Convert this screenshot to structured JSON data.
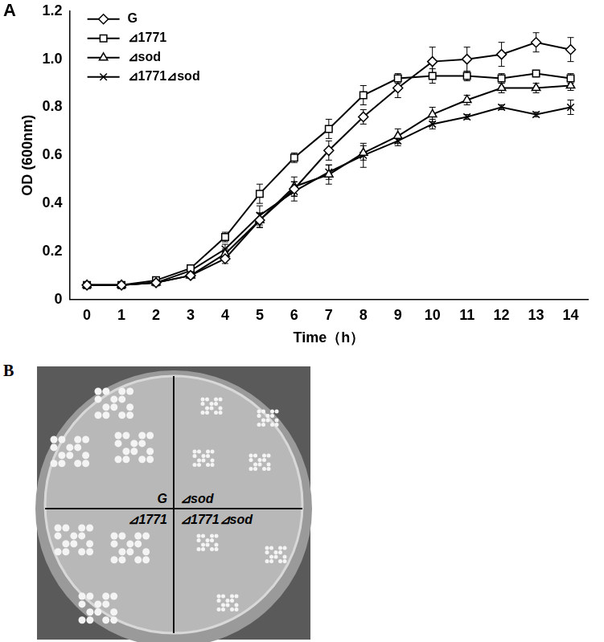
{
  "chart_data": {
    "type": "line",
    "annotations": [
      "A"
    ],
    "x_label": "Time（h）",
    "y_label": "OD (600nm)",
    "categories": [
      "0",
      "1",
      "2",
      "3",
      "4",
      "5",
      "6",
      "7",
      "8",
      "9",
      "10",
      "11",
      "12",
      "13",
      "14"
    ],
    "series": [
      {
        "name": "G",
        "color": "#000000",
        "marker": "diamond",
        "values": [
          0.06,
          0.06,
          0.07,
          0.1,
          0.17,
          0.33,
          0.46,
          0.62,
          0.76,
          0.88,
          0.99,
          1.0,
          1.02,
          1.07,
          1.04
        ],
        "errors": [
          0.005,
          0.005,
          0.01,
          0.01,
          0.02,
          0.03,
          0.03,
          0.04,
          0.03,
          0.04,
          0.06,
          0.05,
          0.05,
          0.04,
          0.05
        ]
      },
      {
        "name": "⊿1771",
        "color": "#000000",
        "marker": "square",
        "values": [
          0.06,
          0.06,
          0.08,
          0.13,
          0.26,
          0.44,
          0.59,
          0.71,
          0.85,
          0.92,
          0.93,
          0.93,
          0.92,
          0.94,
          0.92
        ],
        "errors": [
          0.005,
          0.005,
          0.01,
          0.01,
          0.02,
          0.04,
          0.02,
          0.04,
          0.04,
          0.02,
          0.03,
          0.02,
          0.02,
          0.01,
          0.02
        ]
      },
      {
        "name": "⊿sod",
        "color": "#000000",
        "marker": "triangle",
        "values": [
          0.06,
          0.06,
          0.07,
          0.1,
          0.19,
          0.33,
          0.47,
          0.52,
          0.61,
          0.68,
          0.77,
          0.83,
          0.88,
          0.88,
          0.89
        ],
        "errors": [
          0.005,
          0.005,
          0.01,
          0.01,
          0.02,
          0.03,
          0.04,
          0.04,
          0.03,
          0.03,
          0.03,
          0.02,
          0.02,
          0.02,
          0.02
        ]
      },
      {
        "name": "⊿1771⊿sod",
        "color": "#000000",
        "marker": "x",
        "values": [
          0.06,
          0.06,
          0.07,
          0.12,
          0.21,
          0.35,
          0.45,
          0.53,
          0.6,
          0.66,
          0.73,
          0.76,
          0.8,
          0.77,
          0.8
        ],
        "errors": [
          0.005,
          0.005,
          0.01,
          0.01,
          0.02,
          0.04,
          0.04,
          0.03,
          0.05,
          0.02,
          0.02,
          0.01,
          0.01,
          0.01,
          0.03
        ]
      }
    ],
    "ylim": [
      0,
      1.2
    ],
    "yticks": [
      0,
      0.2,
      0.4,
      0.6,
      0.8,
      1,
      1.2
    ],
    "grid": false,
    "legend": "upper left"
  },
  "plate": {
    "panel_label": "B",
    "labels": [
      "G",
      "⊿sod",
      "⊿1771",
      "⊿1771⊿sod"
    ]
  }
}
